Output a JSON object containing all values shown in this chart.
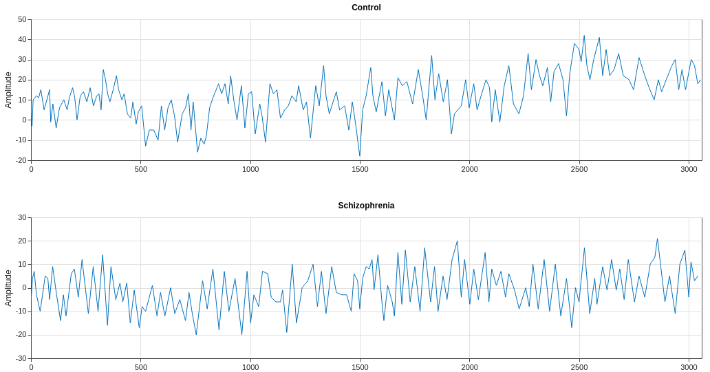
{
  "chart_data": [
    {
      "type": "line",
      "title": "Control",
      "ylabel": "Amplitude",
      "xlim": [
        0,
        3060
      ],
      "xticks": [
        0,
        500,
        1000,
        1500,
        2000,
        2500,
        3000
      ],
      "ylim": [
        -20,
        50
      ],
      "yticks": [
        -20,
        -10,
        0,
        10,
        20,
        30,
        40,
        50
      ],
      "grid": true,
      "x": [
        0,
        5,
        10,
        25,
        35,
        45,
        60,
        75,
        85,
        90,
        100,
        115,
        130,
        150,
        165,
        175,
        190,
        200,
        210,
        225,
        240,
        255,
        270,
        285,
        300,
        310,
        320,
        330,
        340,
        350,
        360,
        375,
        390,
        400,
        415,
        425,
        440,
        455,
        465,
        480,
        490,
        505,
        523,
        540,
        560,
        580,
        595,
        610,
        625,
        640,
        655,
        669,
        690,
        705,
        718,
        730,
        740,
        760,
        775,
        790,
        800,
        815,
        830,
        856,
        870,
        885,
        900,
        911,
        925,
        940,
        960,
        976,
        992,
        1007,
        1023,
        1044,
        1054,
        1070,
        1090,
        1106,
        1122,
        1138,
        1158,
        1174,
        1190,
        1210,
        1221,
        1242,
        1257,
        1275,
        1299,
        1315,
        1335,
        1346,
        1361,
        1393,
        1408,
        1431,
        1450,
        1466,
        1481,
        1500,
        1513,
        1529,
        1550,
        1560,
        1575,
        1601,
        1617,
        1632,
        1658,
        1674,
        1694,
        1715,
        1741,
        1767,
        1787,
        1803,
        1828,
        1843,
        1860,
        1881,
        1900,
        1918,
        1932,
        1963,
        1983,
        1999,
        2020,
        2035,
        2056,
        2076,
        2092,
        2102,
        2118,
        2139,
        2159,
        2180,
        2201,
        2226,
        2247,
        2268,
        2283,
        2304,
        2320,
        2335,
        2356,
        2371,
        2386,
        2407,
        2427,
        2443,
        2458,
        2479,
        2500,
        2510,
        2524,
        2536,
        2550,
        2567,
        2593,
        2608,
        2624,
        2640,
        2660,
        2681,
        2702,
        2728,
        2749,
        2774,
        2800,
        2820,
        2843,
        2862,
        2877,
        2898,
        2924,
        2939,
        2955,
        2970,
        2986,
        3012,
        3027,
        3042,
        3055
      ],
      "series": [
        {
          "color": "#0072bd",
          "values": [
            8,
            -3,
            10,
            12,
            11,
            15,
            5,
            11,
            15,
            -1,
            8,
            -4,
            6,
            10,
            5,
            11,
            16,
            11,
            0,
            12,
            14,
            9,
            16,
            7,
            12,
            13,
            5,
            25,
            20,
            13,
            9,
            15,
            22,
            15,
            10,
            13,
            3,
            1,
            9,
            -2,
            4,
            7,
            -13,
            -5,
            -5,
            -10,
            7,
            -5,
            6,
            10,
            2,
            -11,
            3,
            6,
            13,
            -5,
            9,
            -16,
            -9,
            -12,
            -8,
            6,
            11,
            18,
            13,
            18,
            8,
            22,
            10,
            0,
            17,
            -4,
            13,
            14,
            -7,
            8,
            2,
            -11,
            18,
            13,
            15,
            1,
            5,
            7,
            12,
            9,
            17,
            5,
            9,
            -9,
            17,
            7,
            27,
            12,
            3,
            14,
            5,
            7,
            -5,
            9,
            -2,
            -18,
            5,
            12,
            26,
            12,
            4,
            19,
            2,
            15,
            0,
            21,
            17,
            19,
            8,
            25,
            12,
            0,
            32,
            10,
            23,
            9,
            20,
            -7,
            3,
            7,
            20,
            6,
            18,
            5,
            13,
            20,
            16,
            -1,
            15,
            -1,
            17,
            27,
            8,
            3,
            12,
            33,
            15,
            30,
            22,
            17,
            26,
            9,
            24,
            28,
            20,
            2,
            23,
            38,
            35,
            29,
            42,
            27,
            20,
            30,
            41,
            22,
            35,
            22,
            25,
            33,
            22,
            20,
            15,
            31,
            22,
            16,
            10,
            20,
            14,
            20,
            27,
            30,
            15,
            25,
            15,
            30,
            27,
            18,
            20
          ]
        }
      ]
    },
    {
      "type": "line",
      "title": "Schizophrenia",
      "ylabel": "Amplitude",
      "xlim": [
        0,
        3060
      ],
      "xticks": [
        0,
        500,
        1000,
        1500,
        2000,
        2500,
        3000
      ],
      "ylim": [
        -30,
        30
      ],
      "yticks": [
        -30,
        -20,
        -10,
        0,
        10,
        20,
        30
      ],
      "grid": true,
      "x": [
        0,
        7,
        15,
        25,
        42,
        65,
        77,
        85,
        99,
        117,
        135,
        148,
        160,
        184,
        198,
        216,
        233,
        262,
        284,
        306,
        327,
        349,
        365,
        387,
        406,
        419,
        437,
        453,
        471,
        494,
        507,
        523,
        554,
        575,
        591,
        611,
        637,
        656,
        679,
        705,
        721,
        736,
        754,
        783,
        804,
        830,
        858,
        882,
        903,
        931,
        962,
        986,
        1002,
        1017,
        1039,
        1056,
        1080,
        1096,
        1117,
        1138,
        1148,
        1167,
        1192,
        1211,
        1237,
        1263,
        1287,
        1307,
        1325,
        1346,
        1372,
        1393,
        1419,
        1440,
        1461,
        1474,
        1490,
        1500,
        1513,
        1529,
        1543,
        1556,
        1565,
        1583,
        1601,
        1610,
        1627,
        1648,
        1658,
        1674,
        1692,
        1708,
        1730,
        1751,
        1775,
        1796,
        1823,
        1841,
        1857,
        1880,
        1898,
        1921,
        1945,
        1963,
        1978,
        2002,
        2020,
        2041,
        2072,
        2089,
        2102,
        2123,
        2144,
        2165,
        2180,
        2206,
        2227,
        2257,
        2273,
        2290,
        2314,
        2341,
        2366,
        2392,
        2417,
        2443,
        2467,
        2484,
        2500,
        2525,
        2549,
        2572,
        2582,
        2608,
        2628,
        2649,
        2670,
        2686,
        2706,
        2725,
        2753,
        2774,
        2800,
        2825,
        2846,
        2858,
        2877,
        2892,
        2913,
        2939,
        2960,
        2983,
        3001,
        3011,
        3027,
        3042
      ],
      "series": [
        {
          "color": "#0072bd",
          "values": [
            -6,
            4,
            7,
            -3,
            -10,
            5,
            4,
            -5,
            9,
            -3,
            -14,
            -3,
            -12,
            6,
            8,
            -4,
            12,
            -11,
            9,
            -10,
            14,
            -16,
            9,
            -5,
            2,
            -6,
            2,
            -15,
            -1,
            -17,
            -8,
            -10,
            1,
            -12,
            -2,
            -12,
            0,
            -11,
            -5,
            -14,
            -2,
            -11,
            -20,
            3,
            -9,
            8,
            -18,
            7,
            -10,
            4,
            -20,
            7,
            -15,
            -3,
            -8,
            7,
            6,
            -4,
            -6,
            -6,
            -1,
            -19,
            10,
            -15,
            0,
            3,
            10,
            -8,
            7,
            -11,
            9,
            -2,
            -3,
            -3,
            -10,
            6,
            3,
            -9,
            4,
            9,
            8,
            12,
            -1,
            14,
            -6,
            -14,
            1,
            -6,
            -12,
            15,
            -7,
            16,
            -6,
            9,
            -10,
            17,
            -6,
            9,
            -10,
            5,
            -5,
            12,
            20,
            -4,
            12,
            -7,
            8,
            -5,
            15,
            -6,
            8,
            1,
            7,
            -4,
            6,
            -1,
            -9,
            0,
            -8,
            10,
            -9,
            12,
            -10,
            10,
            -12,
            4,
            -17,
            0,
            -6,
            17,
            -11,
            4,
            -7,
            9,
            -1,
            12,
            -1,
            8,
            -5,
            12,
            -6,
            5,
            -4,
            10,
            13,
            21,
            6,
            -6,
            5,
            -11,
            10,
            16,
            -4,
            11,
            3,
            5
          ]
        }
      ]
    }
  ]
}
